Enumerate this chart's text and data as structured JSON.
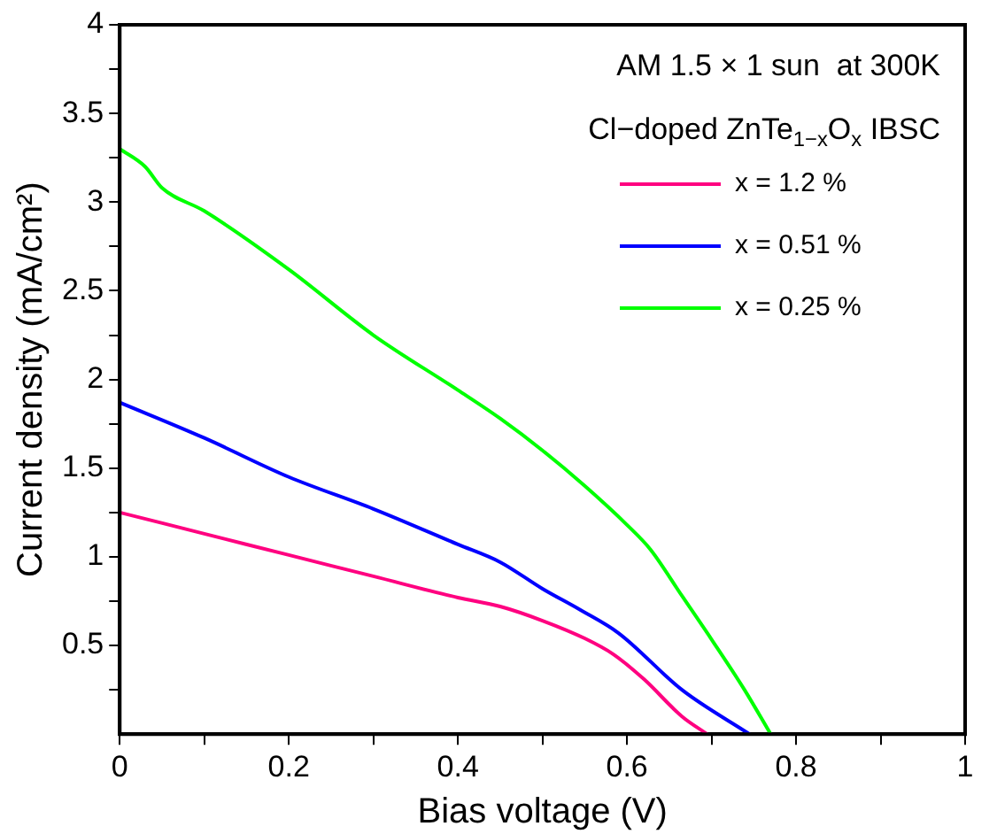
{
  "chart_data": {
    "type": "line",
    "xlabel": "Bias voltage (V)",
    "ylabel": "Current density (mA/cm²)",
    "annotations": [
      "AM 1.5 × 1 sun  at 300K",
      "Cl−doped ZnTe$_{1−x}$O$_{x}$ IBSC"
    ],
    "xlim": [
      0,
      1
    ],
    "ylim": [
      0,
      4
    ],
    "xticks": [
      0,
      {
        "value": 0.1,
        "label": null
      },
      0.2,
      {
        "value": 0.3,
        "label": null
      },
      0.4,
      {
        "value": 0.5,
        "label": null
      },
      0.6,
      {
        "value": 0.7,
        "label": null
      },
      0.8,
      {
        "value": 0.9,
        "label": null
      },
      1
    ],
    "yticks": [
      {
        "value": 0.25,
        "label": null
      },
      0.5,
      {
        "value": 0.75,
        "label": null
      },
      1,
      {
        "value": 1.25,
        "label": null
      },
      1.5,
      {
        "value": 1.75,
        "label": null
      },
      2,
      {
        "value": 2.25,
        "label": null
      },
      2.5,
      {
        "value": 2.75,
        "label": null
      },
      3,
      {
        "value": 3.25,
        "label": null
      },
      3.5,
      {
        "value": 3.75,
        "label": null
      },
      4
    ],
    "grid": false,
    "legend": "top right",
    "marker": "none",
    "line_style": "solid",
    "series": [
      {
        "name": "x = 1.2 %",
        "color": "#ff0080",
        "x": [
          0,
          0.1,
          0.2,
          0.3,
          0.4,
          0.45,
          0.5,
          0.55,
          0.584,
          0.62,
          0.665,
          0.695
        ],
        "values": [
          1.25,
          1.13,
          1.01,
          0.89,
          0.77,
          0.72,
          0.64,
          0.54,
          0.45,
          0.31,
          0.1,
          0
        ]
      },
      {
        "name": "x = 0.51 %",
        "color": "#0000ff",
        "x": [
          0,
          0.1,
          0.2,
          0.3,
          0.4,
          0.45,
          0.5,
          0.545,
          0.59,
          0.665,
          0.745
        ],
        "values": [
          1.87,
          1.67,
          1.45,
          1.27,
          1.07,
          0.97,
          0.82,
          0.7,
          0.57,
          0.25,
          0
        ]
      },
      {
        "name": "x = 0.25 %",
        "color": "#00ff00",
        "x": [
          0,
          0.03,
          0.05,
          0.1,
          0.2,
          0.3,
          0.4,
          0.45,
          0.5,
          0.55,
          0.6,
          0.628,
          0.665,
          0.702,
          0.739,
          0.77
        ],
        "values": [
          3.3,
          3.2,
          3.08,
          2.95,
          2.62,
          2.25,
          1.94,
          1.78,
          1.6,
          1.4,
          1.18,
          1.04,
          0.78,
          0.52,
          0.25,
          0
        ]
      }
    ]
  }
}
